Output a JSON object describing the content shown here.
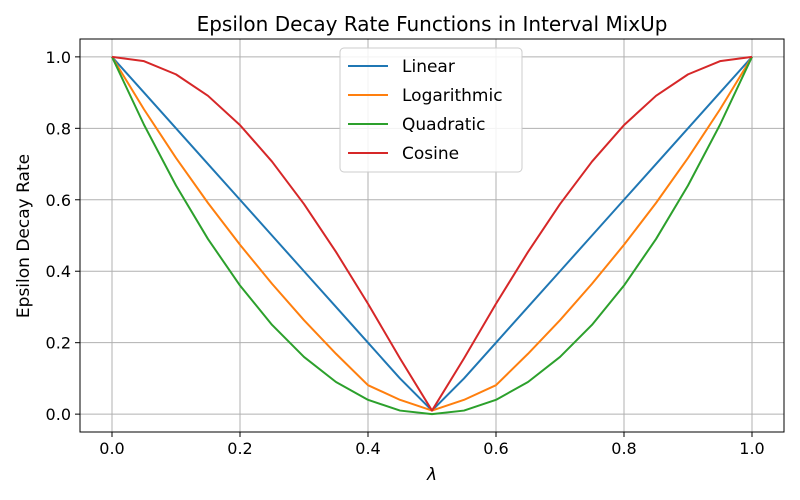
{
  "chart_data": {
    "type": "line",
    "title": "Epsilon Decay Rate Functions in Interval MixUp",
    "xlabel": "λ",
    "ylabel": "Epsilon Decay Rate",
    "xlim": [
      -0.05,
      1.05
    ],
    "ylim": [
      -0.05,
      1.05
    ],
    "grid": true,
    "legend_position": "top-center",
    "xticks": [
      0.0,
      0.2,
      0.4,
      0.6,
      0.8,
      1.0
    ],
    "xtick_labels": [
      "0.0",
      "0.2",
      "0.4",
      "0.6",
      "0.8",
      "1.0"
    ],
    "yticks": [
      0.0,
      0.2,
      0.4,
      0.6,
      0.8,
      1.0
    ],
    "ytick_labels": [
      "0.0",
      "0.2",
      "0.4",
      "0.6",
      "0.8",
      "1.0"
    ],
    "x": [
      0.0,
      0.05,
      0.1,
      0.15,
      0.2,
      0.25,
      0.3,
      0.35,
      0.4,
      0.45,
      0.5,
      0.55,
      0.6,
      0.65,
      0.7,
      0.75,
      0.8,
      0.85,
      0.9,
      0.95,
      1.0
    ],
    "series": [
      {
        "name": "Linear",
        "color": "#1f77b4",
        "values": [
          1.0,
          0.9,
          0.8,
          0.7,
          0.6,
          0.5,
          0.4,
          0.3,
          0.2,
          0.1,
          0.01,
          0.1,
          0.2,
          0.3,
          0.4,
          0.5,
          0.6,
          0.7,
          0.8,
          0.9,
          1.0
        ]
      },
      {
        "name": "Logarithmic",
        "color": "#ff7f0e",
        "values": [
          1.0,
          0.853,
          0.717,
          0.591,
          0.474,
          0.365,
          0.263,
          0.169,
          0.081,
          0.04,
          0.01,
          0.04,
          0.081,
          0.169,
          0.263,
          0.365,
          0.474,
          0.591,
          0.717,
          0.853,
          1.0
        ]
      },
      {
        "name": "Quadratic",
        "color": "#2ca02c",
        "values": [
          1.0,
          0.81,
          0.64,
          0.49,
          0.36,
          0.25,
          0.16,
          0.09,
          0.04,
          0.01,
          0.0,
          0.01,
          0.04,
          0.09,
          0.16,
          0.25,
          0.36,
          0.49,
          0.64,
          0.81,
          1.0
        ]
      },
      {
        "name": "Cosine",
        "color": "#d62728",
        "values": [
          1.0,
          0.988,
          0.951,
          0.891,
          0.809,
          0.707,
          0.588,
          0.454,
          0.309,
          0.156,
          0.01,
          0.156,
          0.309,
          0.454,
          0.588,
          0.707,
          0.809,
          0.891,
          0.951,
          0.988,
          1.0
        ]
      }
    ]
  }
}
